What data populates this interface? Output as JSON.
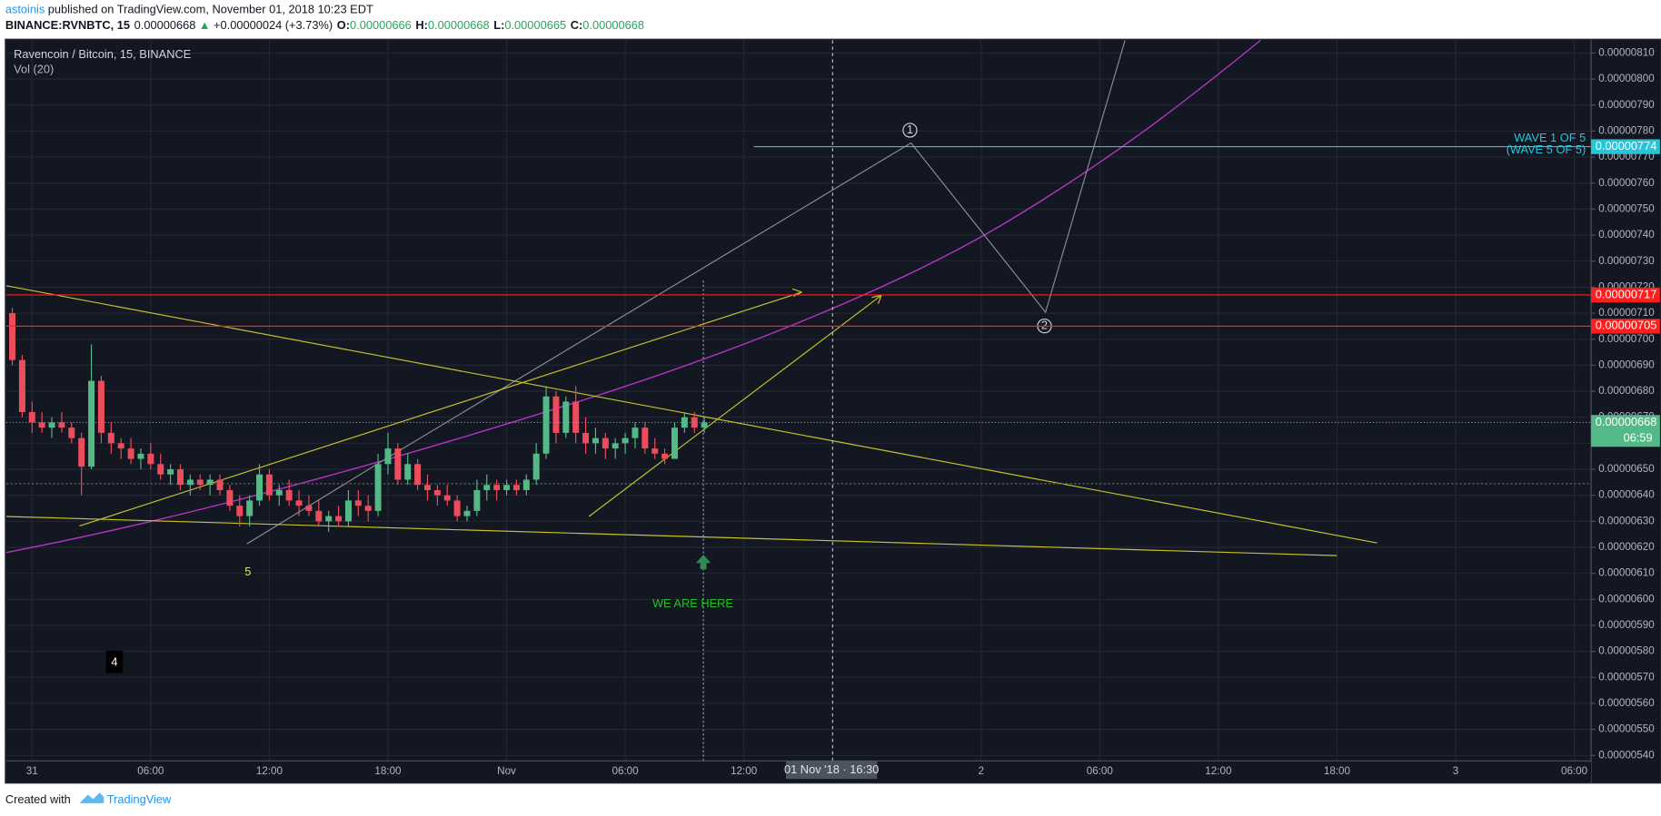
{
  "header": {
    "author": "astoinis",
    "published": "published on TradingView.com, November 01, 2018 10:23 EDT"
  },
  "quote": {
    "symbol": "BINANCE:RVNBTC, 15",
    "last": "0.00000668",
    "arrow": "▲",
    "change": "+0.00000024 (+3.73%)",
    "o_label": "O:",
    "open": "0.00000666",
    "h_label": "H:",
    "high": "0.00000668",
    "l_label": "L:",
    "low": "0.00000665",
    "c_label": "C:",
    "close": "0.00000668"
  },
  "chart_data": {
    "type": "candlestick",
    "title": "Ravencoin / Bitcoin, 15, BINANCE",
    "subtitle": "Vol (20)",
    "up_color": "#53b987",
    "down_color": "#eb4d5c",
    "grid": true,
    "x": [
      -1,
      -0.5,
      0,
      0.5,
      1,
      1.5,
      2,
      2.5,
      3,
      3.5,
      4,
      4.5,
      5,
      5.5,
      6,
      6.5,
      7,
      7.5,
      8,
      8.5,
      9,
      9.5,
      10,
      10.5,
      11,
      11.5,
      12,
      12.5,
      13,
      13.5,
      14,
      14.5,
      15,
      15.5,
      16,
      16.5,
      17,
      17.5,
      18,
      18.5,
      19,
      19.5,
      20,
      20.5,
      21,
      21.5,
      22,
      22.5,
      23,
      23.5,
      24,
      24.5,
      25,
      25.5,
      26,
      26.5,
      27,
      27.5,
      28,
      28.5,
      29,
      29.5,
      30,
      30.5,
      31,
      31.5,
      32,
      32.5,
      33,
      33.5,
      34
    ],
    "open": [
      7.1e-06,
      6.92e-06,
      6.72e-06,
      6.68e-06,
      6.66e-06,
      6.68e-06,
      6.66e-06,
      6.62e-06,
      6.51e-06,
      6.84e-06,
      6.64e-06,
      6.6e-06,
      6.58e-06,
      6.54e-06,
      6.56e-06,
      6.52e-06,
      6.48e-06,
      6.5e-06,
      6.44e-06,
      6.46e-06,
      6.44e-06,
      6.46e-06,
      6.42e-06,
      6.36e-06,
      6.32e-06,
      6.38e-06,
      6.48e-06,
      6.4e-06,
      6.42e-06,
      6.38e-06,
      6.36e-06,
      6.34e-06,
      6.3e-06,
      6.32e-06,
      6.3e-06,
      6.38e-06,
      6.36e-06,
      6.34e-06,
      6.52e-06,
      6.58e-06,
      6.46e-06,
      6.52e-06,
      6.44e-06,
      6.42e-06,
      6.4e-06,
      6.38e-06,
      6.32e-06,
      6.34e-06,
      6.42e-06,
      6.44e-06,
      6.42e-06,
      6.44e-06,
      6.42e-06,
      6.46e-06,
      6.56e-06,
      6.78e-06,
      6.64e-06,
      6.76e-06,
      6.64e-06,
      6.6e-06,
      6.62e-06,
      6.58e-06,
      6.6e-06,
      6.62e-06,
      6.66e-06,
      6.58e-06,
      6.56e-06,
      6.54e-06,
      6.66e-06,
      6.7e-06,
      6.66e-06
    ],
    "high": [
      7.12e-06,
      6.94e-06,
      6.76e-06,
      6.72e-06,
      6.7e-06,
      6.72e-06,
      6.68e-06,
      6.64e-06,
      6.98e-06,
      6.86e-06,
      6.68e-06,
      6.62e-06,
      6.62e-06,
      6.58e-06,
      6.6e-06,
      6.56e-06,
      6.52e-06,
      6.52e-06,
      6.48e-06,
      6.48e-06,
      6.48e-06,
      6.48e-06,
      6.44e-06,
      6.4e-06,
      6.4e-06,
      6.52e-06,
      6.5e-06,
      6.44e-06,
      6.46e-06,
      6.42e-06,
      6.4e-06,
      6.38e-06,
      6.34e-06,
      6.36e-06,
      6.42e-06,
      6.42e-06,
      6.4e-06,
      6.56e-06,
      6.64e-06,
      6.6e-06,
      6.56e-06,
      6.54e-06,
      6.48e-06,
      6.44e-06,
      6.44e-06,
      6.4e-06,
      6.36e-06,
      6.46e-06,
      6.48e-06,
      6.46e-06,
      6.46e-06,
      6.46e-06,
      6.48e-06,
      6.6e-06,
      6.82e-06,
      6.8e-06,
      6.78e-06,
      6.82e-06,
      6.7e-06,
      6.66e-06,
      6.64e-06,
      6.62e-06,
      6.64e-06,
      6.68e-06,
      6.68e-06,
      6.62e-06,
      6.58e-06,
      6.68e-06,
      6.72e-06,
      6.72e-06,
      6.7e-06
    ],
    "low": [
      6.9e-06,
      6.7e-06,
      6.64e-06,
      6.64e-06,
      6.62e-06,
      6.64e-06,
      6.6e-06,
      6.4e-06,
      6.5e-06,
      6.6e-06,
      6.56e-06,
      6.54e-06,
      6.52e-06,
      6.5e-06,
      6.5e-06,
      6.46e-06,
      6.44e-06,
      6.42e-06,
      6.4e-06,
      6.42e-06,
      6.4e-06,
      6.4e-06,
      6.34e-06,
      6.28e-06,
      6.28e-06,
      6.36e-06,
      6.38e-06,
      6.36e-06,
      6.36e-06,
      6.32e-06,
      6.32e-06,
      6.28e-06,
      6.26e-06,
      6.28e-06,
      6.28e-06,
      6.32e-06,
      6.3e-06,
      6.32e-06,
      6.48e-06,
      6.44e-06,
      6.44e-06,
      6.42e-06,
      6.38e-06,
      6.36e-06,
      6.36e-06,
      6.3e-06,
      6.3e-06,
      6.32e-06,
      6.38e-06,
      6.38e-06,
      6.4e-06,
      6.4e-06,
      6.4e-06,
      6.44e-06,
      6.54e-06,
      6.6e-06,
      6.62e-06,
      6.6e-06,
      6.56e-06,
      6.56e-06,
      6.54e-06,
      6.54e-06,
      6.56e-06,
      6.58e-06,
      6.56e-06,
      6.54e-06,
      6.52e-06,
      6.54e-06,
      6.64e-06,
      6.64e-06,
      6.64e-06
    ],
    "close": [
      6.92e-06,
      6.72e-06,
      6.68e-06,
      6.66e-06,
      6.68e-06,
      6.66e-06,
      6.62e-06,
      6.51e-06,
      6.84e-06,
      6.64e-06,
      6.6e-06,
      6.58e-06,
      6.54e-06,
      6.56e-06,
      6.52e-06,
      6.48e-06,
      6.5e-06,
      6.44e-06,
      6.46e-06,
      6.44e-06,
      6.46e-06,
      6.42e-06,
      6.36e-06,
      6.32e-06,
      6.38e-06,
      6.48e-06,
      6.4e-06,
      6.42e-06,
      6.38e-06,
      6.36e-06,
      6.34e-06,
      6.3e-06,
      6.32e-06,
      6.3e-06,
      6.38e-06,
      6.36e-06,
      6.34e-06,
      6.52e-06,
      6.58e-06,
      6.46e-06,
      6.52e-06,
      6.44e-06,
      6.42e-06,
      6.4e-06,
      6.38e-06,
      6.32e-06,
      6.34e-06,
      6.42e-06,
      6.44e-06,
      6.42e-06,
      6.44e-06,
      6.42e-06,
      6.46e-06,
      6.56e-06,
      6.78e-06,
      6.64e-06,
      6.76e-06,
      6.64e-06,
      6.6e-06,
      6.62e-06,
      6.58e-06,
      6.6e-06,
      6.62e-06,
      6.66e-06,
      6.58e-06,
      6.56e-06,
      6.54e-06,
      6.66e-06,
      6.7e-06,
      6.66e-06,
      6.68e-06
    ],
    "xlim": [
      -1.3,
      78.85
    ],
    "xticks": [
      {
        "value": 0,
        "label": "31"
      },
      {
        "value": 6,
        "label": "06:00"
      },
      {
        "value": 12,
        "label": "12:00"
      },
      {
        "value": 18,
        "label": "18:00"
      },
      {
        "value": 24,
        "label": "Nov"
      },
      {
        "value": 30,
        "label": "06:00"
      },
      {
        "value": 36,
        "label": "12:00"
      },
      {
        "value": 48,
        "label": "2"
      },
      {
        "value": 54,
        "label": "06:00"
      },
      {
        "value": 60,
        "label": "12:00"
      },
      {
        "value": 66,
        "label": "18:00"
      },
      {
        "value": 72,
        "label": "3"
      },
      {
        "value": 78,
        "label": "06:00"
      }
    ],
    "ylim": [
      5.379e-06,
      8.149e-06
    ],
    "yticks": [
      {
        "value": 5.4e-06,
        "label": "0.00000540"
      },
      {
        "value": 5.5e-06,
        "label": "0.00000550"
      },
      {
        "value": 5.6e-06,
        "label": "0.00000560"
      },
      {
        "value": 5.7e-06,
        "label": "0.00000570"
      },
      {
        "value": 5.8e-06,
        "label": "0.00000580"
      },
      {
        "value": 5.9e-06,
        "label": "0.00000590"
      },
      {
        "value": 6e-06,
        "label": "0.00000600"
      },
      {
        "value": 6.1e-06,
        "label": "0.00000610"
      },
      {
        "value": 6.2e-06,
        "label": "0.00000620"
      },
      {
        "value": 6.3e-06,
        "label": "0.00000630"
      },
      {
        "value": 6.4e-06,
        "label": "0.00000640"
      },
      {
        "value": 6.5e-06,
        "label": "0.00000650"
      },
      {
        "value": 6.6e-06,
        "label": "0.00000660"
      },
      {
        "value": 6.7e-06,
        "label": "0.00000670"
      },
      {
        "value": 6.8e-06,
        "label": "0.00000680"
      },
      {
        "value": 6.9e-06,
        "label": "0.00000690"
      },
      {
        "value": 7e-06,
        "label": "0.00000700"
      },
      {
        "value": 7.1e-06,
        "label": "0.00000710"
      },
      {
        "value": 7.2e-06,
        "label": "0.00000720"
      },
      {
        "value": 7.3e-06,
        "label": "0.00000730"
      },
      {
        "value": 7.4e-06,
        "label": "0.00000740"
      },
      {
        "value": 7.5e-06,
        "label": "0.00000750"
      },
      {
        "value": 7.6e-06,
        "label": "0.00000760"
      },
      {
        "value": 7.7e-06,
        "label": "0.00000770"
      },
      {
        "value": 7.8e-06,
        "label": "0.00000780"
      },
      {
        "value": 7.9e-06,
        "label": "0.00000790"
      },
      {
        "value": 8e-06,
        "label": "0.00000800"
      },
      {
        "value": 8.1e-06,
        "label": "0.00000810"
      }
    ],
    "price_lines": [
      {
        "value": 7.74e-06,
        "label": "0.00000774",
        "color": "#26c6da",
        "start": 36.5
      },
      {
        "value": 7.17e-06,
        "label": "0.00000717",
        "color": "#ff1e1e"
      },
      {
        "value": 7.05e-06,
        "label": "0.00000705",
        "color": "#ff1e1e"
      }
    ],
    "last_price": {
      "value": 6.68e-06,
      "label": "0.00000668",
      "countdown": "06:59",
      "color": "#53b987"
    },
    "annotations": {
      "wave_top": "WAVE 1 OF 5",
      "wave_bottom": "(WAVE 5 OF 5)",
      "five": "5",
      "four": "4",
      "here": "WE ARE HERE",
      "one": "1",
      "two": "2"
    },
    "crosshair": "01 Nov '18 · 16:30"
  },
  "footer": {
    "created": "Created with",
    "brand": "TradingView"
  }
}
